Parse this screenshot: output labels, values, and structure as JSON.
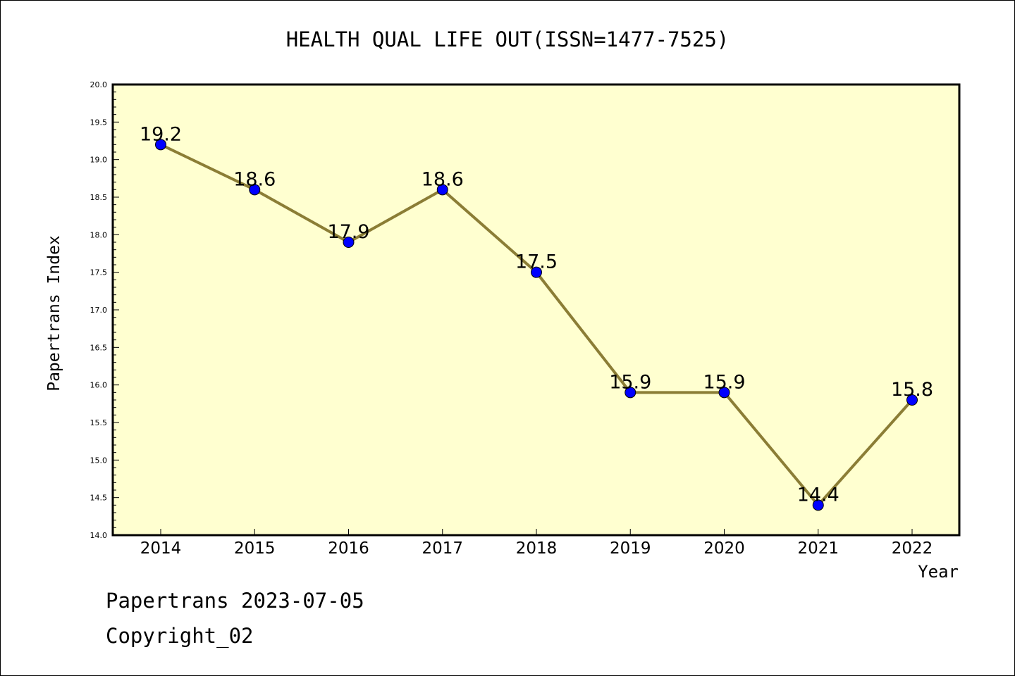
{
  "chart_data": {
    "type": "line",
    "title": "HEALTH QUAL LIFE OUT(ISSN=1477-7525)",
    "xlabel": "Year",
    "ylabel": "Papertrans Index",
    "categories": [
      "2014",
      "2015",
      "2016",
      "2017",
      "2018",
      "2019",
      "2020",
      "2021",
      "2022"
    ],
    "values": [
      19.2,
      18.6,
      17.9,
      18.6,
      17.5,
      15.9,
      15.9,
      14.4,
      15.8
    ],
    "data_labels": [
      "19.2",
      "18.6",
      "17.9",
      "18.6",
      "17.5",
      "15.9",
      "15.9",
      "14.4",
      "15.8"
    ],
    "ylim": [
      14.0,
      20.0
    ],
    "yticks": [
      "14.0",
      "14.5",
      "15.0",
      "15.5",
      "16.0",
      "16.5",
      "17.0",
      "17.5",
      "18.0",
      "18.5",
      "19.0",
      "19.5",
      "20.0"
    ],
    "grid": false,
    "colors": {
      "plot_background": "#ffffd0",
      "line": "#8b7d35",
      "marker": "#0000ff"
    }
  },
  "footer": {
    "line1": "Papertrans 2023-07-05",
    "line2": "Copyright_02"
  }
}
